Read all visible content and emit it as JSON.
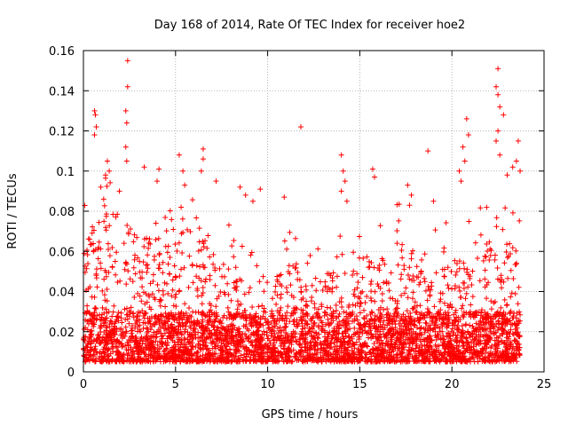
{
  "chart_data": {
    "type": "scatter",
    "title": "Day 168 of 2014, Rate Of TEC Index for receiver hoe2",
    "xlabel": "GPS time / hours",
    "ylabel": "ROTI / TECUs",
    "xlim": [
      0,
      25
    ],
    "ylim": [
      0,
      0.16
    ],
    "xticks": [
      "0",
      "5",
      "10",
      "15",
      "20",
      "25"
    ],
    "yticks": [
      "0",
      "0.02",
      "0.04",
      "0.06",
      "0.08",
      "0.1",
      "0.12",
      "0.14",
      "0.16"
    ],
    "grid": true,
    "marker": "+",
    "series_color": "#ff0000",
    "data_extent_hours": [
      0,
      23.7
    ],
    "noise_floor_range": [
      0.005,
      0.03
    ],
    "density_profile": [
      {
        "hour": 0,
        "upper": 0.065
      },
      {
        "hour": 1,
        "upper": 0.085
      },
      {
        "hour": 2,
        "upper": 0.075
      },
      {
        "hour": 3,
        "upper": 0.07
      },
      {
        "hour": 4,
        "upper": 0.07
      },
      {
        "hour": 5,
        "upper": 0.075
      },
      {
        "hour": 6,
        "upper": 0.07
      },
      {
        "hour": 7,
        "upper": 0.06
      },
      {
        "hour": 8,
        "upper": 0.055
      },
      {
        "hour": 9,
        "upper": 0.045
      },
      {
        "hour": 10,
        "upper": 0.035
      },
      {
        "hour": 11,
        "upper": 0.06
      },
      {
        "hour": 12,
        "upper": 0.05
      },
      {
        "hour": 13,
        "upper": 0.045
      },
      {
        "hour": 14,
        "upper": 0.065
      },
      {
        "hour": 15,
        "upper": 0.06
      },
      {
        "hour": 16,
        "upper": 0.055
      },
      {
        "hour": 17,
        "upper": 0.065
      },
      {
        "hour": 18,
        "upper": 0.065
      },
      {
        "hour": 19,
        "upper": 0.055
      },
      {
        "hour": 20,
        "upper": 0.055
      },
      {
        "hour": 21,
        "upper": 0.06
      },
      {
        "hour": 22,
        "upper": 0.065
      },
      {
        "hour": 23,
        "upper": 0.065
      },
      {
        "hour": 23.7,
        "upper": 0.06
      }
    ],
    "points": [
      [
        0.6,
        0.13
      ],
      [
        0.65,
        0.128
      ],
      [
        0.7,
        0.122
      ],
      [
        0.6,
        0.118
      ],
      [
        2.4,
        0.155
      ],
      [
        2.4,
        0.142
      ],
      [
        2.3,
        0.13
      ],
      [
        2.35,
        0.124
      ],
      [
        2.3,
        0.112
      ],
      [
        2.35,
        0.105
      ],
      [
        1.3,
        0.105
      ],
      [
        1.4,
        0.1
      ],
      [
        1.2,
        0.098
      ],
      [
        3.3,
        0.102
      ],
      [
        4.1,
        0.101
      ],
      [
        4.0,
        0.095
      ],
      [
        5.2,
        0.108
      ],
      [
        5.4,
        0.1
      ],
      [
        5.5,
        0.093
      ],
      [
        6.5,
        0.111
      ],
      [
        6.5,
        0.106
      ],
      [
        6.4,
        0.1
      ],
      [
        7.2,
        0.095
      ],
      [
        8.5,
        0.092
      ],
      [
        8.8,
        0.088
      ],
      [
        9.6,
        0.091
      ],
      [
        9.2,
        0.085
      ],
      [
        10.9,
        0.087
      ],
      [
        11.8,
        0.122
      ],
      [
        14.0,
        0.108
      ],
      [
        14.1,
        0.1
      ],
      [
        14.2,
        0.095
      ],
      [
        14.0,
        0.09
      ],
      [
        14.3,
        0.085
      ],
      [
        15.7,
        0.101
      ],
      [
        15.8,
        0.097
      ],
      [
        17.6,
        0.093
      ],
      [
        17.8,
        0.088
      ],
      [
        17.7,
        0.083
      ],
      [
        18.7,
        0.11
      ],
      [
        19.0,
        0.085
      ],
      [
        20.4,
        0.1
      ],
      [
        20.5,
        0.095
      ],
      [
        20.8,
        0.126
      ],
      [
        20.9,
        0.118
      ],
      [
        20.6,
        0.112
      ],
      [
        20.7,
        0.105
      ],
      [
        22.5,
        0.151
      ],
      [
        22.4,
        0.142
      ],
      [
        22.5,
        0.138
      ],
      [
        22.6,
        0.132
      ],
      [
        22.8,
        0.128
      ],
      [
        22.5,
        0.12
      ],
      [
        22.4,
        0.115
      ],
      [
        22.6,
        0.108
      ],
      [
        23.0,
        0.098
      ],
      [
        23.3,
        0.102
      ],
      [
        23.5,
        0.105
      ],
      [
        23.6,
        0.115
      ],
      [
        23.7,
        0.1
      ]
    ]
  }
}
